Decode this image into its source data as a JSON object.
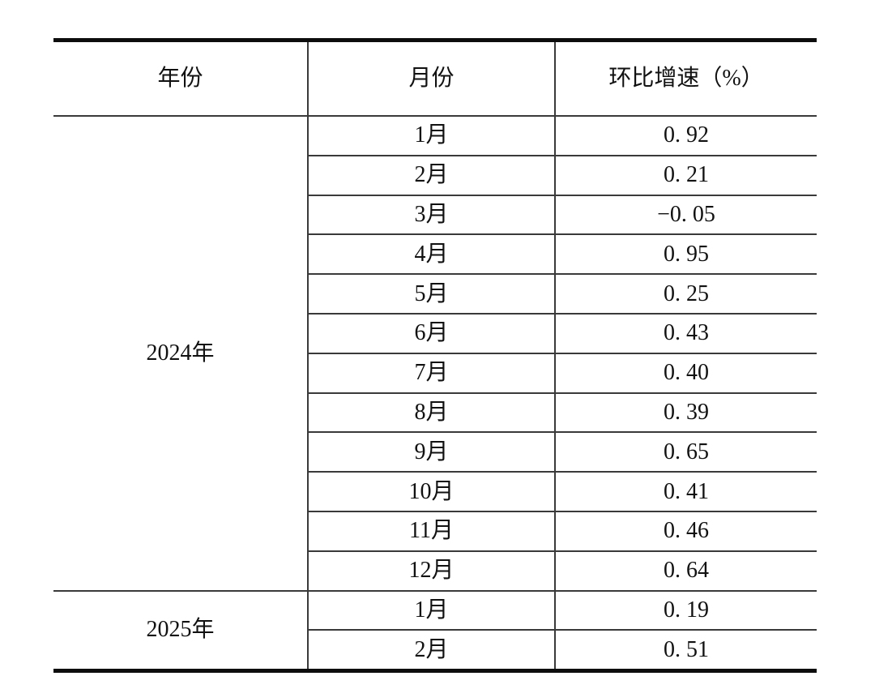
{
  "colors": {
    "border_thick": "#0d0d0d",
    "border_thin": "#3a3a3a",
    "text": "#111111",
    "background": "#ffffff"
  },
  "table": {
    "headers": [
      {
        "key": "year",
        "label": "年份"
      },
      {
        "key": "month",
        "label": "月份"
      },
      {
        "key": "growth",
        "label": "环比增速（%）"
      }
    ],
    "groups": [
      {
        "year": "2024年",
        "rows": [
          {
            "month": "1月",
            "value": "0. 92"
          },
          {
            "month": "2月",
            "value": "0. 21"
          },
          {
            "month": "3月",
            "value": "−0. 05"
          },
          {
            "month": "4月",
            "value": "0. 95"
          },
          {
            "month": "5月",
            "value": "0. 25"
          },
          {
            "month": "6月",
            "value": "0. 43"
          },
          {
            "month": "7月",
            "value": "0. 40"
          },
          {
            "month": "8月",
            "value": "0. 39"
          },
          {
            "month": "9月",
            "value": "0. 65"
          },
          {
            "month": "10月",
            "value": "0. 41"
          },
          {
            "month": "11月",
            "value": "0. 46"
          },
          {
            "month": "12月",
            "value": "0. 64"
          }
        ]
      },
      {
        "year": "2025年",
        "rows": [
          {
            "month": "1月",
            "value": "0. 19"
          },
          {
            "month": "2月",
            "value": "0. 51"
          }
        ]
      }
    ]
  },
  "chart_data": {
    "type": "table",
    "columns": [
      "年份",
      "月份",
      "环比增速（%）"
    ],
    "rows": [
      [
        "2024年",
        "1月",
        0.92
      ],
      [
        "2024年",
        "2月",
        0.21
      ],
      [
        "2024年",
        "3月",
        -0.05
      ],
      [
        "2024年",
        "4月",
        0.95
      ],
      [
        "2024年",
        "5月",
        0.25
      ],
      [
        "2024年",
        "6月",
        0.43
      ],
      [
        "2024年",
        "7月",
        0.4
      ],
      [
        "2024年",
        "8月",
        0.39
      ],
      [
        "2024年",
        "9月",
        0.65
      ],
      [
        "2024年",
        "10月",
        0.41
      ],
      [
        "2024年",
        "11月",
        0.46
      ],
      [
        "2024年",
        "12月",
        0.64
      ],
      [
        "2025年",
        "1月",
        0.19
      ],
      [
        "2025年",
        "2月",
        0.51
      ]
    ]
  }
}
